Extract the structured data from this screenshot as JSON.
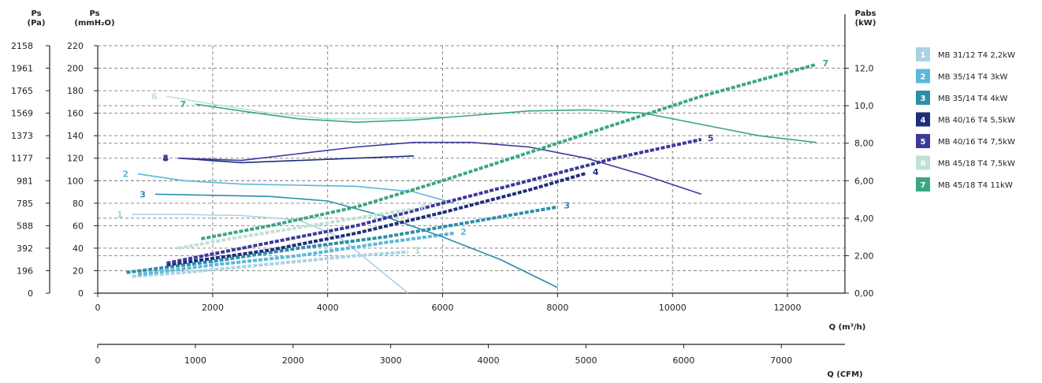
{
  "chart_data": {
    "type": "line",
    "axes": {
      "left_outer": {
        "label_line1": "Ps",
        "label_line2": "(Pa)",
        "ticks": [
          "2158",
          "1961",
          "1765",
          "1569",
          "1373",
          "1177",
          "981",
          "785",
          "588",
          "392",
          "196",
          "0"
        ]
      },
      "left_inner": {
        "label_line1": "Ps",
        "label_line2": "(mmH₂O)",
        "ticks": [
          "220",
          "200",
          "180",
          "160",
          "140",
          "120",
          "100",
          "80",
          "60",
          "40",
          "20",
          "0"
        ],
        "ylim": [
          0,
          220
        ]
      },
      "right": {
        "label_line1": "Pabs",
        "label_line2": "(kW)",
        "ticks": [
          "12,0",
          "10,0",
          "8,00",
          "6,00",
          "4,00",
          "2,00",
          "0,00"
        ],
        "ylim": [
          0,
          13.2
        ]
      },
      "x_m3h": {
        "label": "Q (m³/h)",
        "ticks": [
          "0",
          "2000",
          "4000",
          "6000",
          "8000",
          "10000",
          "12000"
        ],
        "xlim": [
          0,
          13000
        ]
      },
      "x_cfm": {
        "label": "Q (CFM)",
        "ticks": [
          "0",
          "1000",
          "2000",
          "3000",
          "4000",
          "5000",
          "6000",
          "7000"
        ],
        "xlim": [
          0,
          7651
        ]
      }
    },
    "series": [
      {
        "id": "1",
        "name": "MB 31/12 T4 2,2kW",
        "color": "#a9d3e4",
        "pressure": [
          [
            600,
            70
          ],
          [
            1500,
            70
          ],
          [
            2500,
            69
          ],
          [
            3500,
            65
          ],
          [
            4200,
            50
          ],
          [
            4800,
            25
          ],
          [
            5400,
            0
          ]
        ],
        "power": [
          [
            600,
            0.9
          ],
          [
            1500,
            1.1
          ],
          [
            2500,
            1.4
          ],
          [
            3500,
            1.7
          ],
          [
            4500,
            2.0
          ],
          [
            5400,
            2.2
          ]
        ]
      },
      {
        "id": "2",
        "name": "MB 35/14 T4 3kW",
        "color": "#5bb8dc",
        "pressure": [
          [
            700,
            106
          ],
          [
            1500,
            100
          ],
          [
            2500,
            97
          ],
          [
            3500,
            96
          ],
          [
            4500,
            95
          ],
          [
            5500,
            90
          ],
          [
            6200,
            80
          ]
        ],
        "power": [
          [
            700,
            1.0
          ],
          [
            2000,
            1.5
          ],
          [
            3500,
            2.0
          ],
          [
            5000,
            2.7
          ],
          [
            6200,
            3.2
          ]
        ]
      },
      {
        "id": "3",
        "name": "MB 35/14 T4 4kW",
        "color": "#2b8eaa",
        "pressure": [
          [
            1000,
            88
          ],
          [
            2000,
            87
          ],
          [
            3000,
            86
          ],
          [
            4000,
            82
          ],
          [
            5000,
            68
          ],
          [
            6000,
            50
          ],
          [
            7000,
            30
          ],
          [
            8000,
            5
          ]
        ],
        "power": [
          [
            500,
            1.1
          ],
          [
            2000,
            1.7
          ],
          [
            3500,
            2.4
          ],
          [
            5000,
            3.0
          ],
          [
            6500,
            3.8
          ],
          [
            8000,
            4.6
          ]
        ]
      },
      {
        "id": "4",
        "name": "MB 40/16 T4 5,5kW",
        "color": "#1d2e7a",
        "pressure": [
          [
            1400,
            120
          ],
          [
            2500,
            116
          ],
          [
            3500,
            118
          ],
          [
            4500,
            120
          ],
          [
            5500,
            122
          ]
        ],
        "power": [
          [
            1200,
            1.5
          ],
          [
            3000,
            2.3
          ],
          [
            4500,
            3.2
          ],
          [
            6000,
            4.3
          ],
          [
            7500,
            5.5
          ],
          [
            8500,
            6.4
          ]
        ]
      },
      {
        "id": "5",
        "name": "MB 40/16 T4 7,5kW",
        "color": "#3a3a9a",
        "pressure": [
          [
            1400,
            120
          ],
          [
            2500,
            118
          ],
          [
            3500,
            124
          ],
          [
            4500,
            130
          ],
          [
            5500,
            134
          ],
          [
            6500,
            134
          ],
          [
            7500,
            130
          ],
          [
            8500,
            120
          ],
          [
            9500,
            105
          ],
          [
            10500,
            88
          ]
        ],
        "power": [
          [
            1200,
            1.6
          ],
          [
            3000,
            2.7
          ],
          [
            4500,
            3.6
          ],
          [
            6000,
            4.8
          ],
          [
            7500,
            6.0
          ],
          [
            9000,
            7.2
          ],
          [
            10500,
            8.2
          ]
        ]
      },
      {
        "id": "6",
        "name": "MB 45/18 T4 7,5kW",
        "color": "#bfe2d6",
        "pressure": [
          [
            1200,
            175
          ],
          [
            2000,
            168
          ],
          [
            3000,
            160
          ],
          [
            4000,
            155
          ],
          [
            5000,
            155
          ],
          [
            6000,
            157
          ]
        ],
        "power": [
          [
            1400,
            2.4
          ],
          [
            2500,
            3.0
          ],
          [
            3500,
            3.5
          ],
          [
            4500,
            4.0
          ],
          [
            5500,
            4.5
          ]
        ]
      },
      {
        "id": "7",
        "name": "MB 45/18 T4 11kW",
        "color": "#3aa684",
        "pressure": [
          [
            1700,
            168
          ],
          [
            2500,
            162
          ],
          [
            3500,
            155
          ],
          [
            4500,
            152
          ],
          [
            5500,
            154
          ],
          [
            6500,
            158
          ],
          [
            7500,
            162
          ],
          [
            8500,
            163
          ],
          [
            9500,
            160
          ],
          [
            10500,
            150
          ],
          [
            11500,
            140
          ],
          [
            12500,
            134
          ]
        ],
        "power": [
          [
            1800,
            2.9
          ],
          [
            3000,
            3.6
          ],
          [
            4500,
            4.6
          ],
          [
            6000,
            6.0
          ],
          [
            7500,
            7.5
          ],
          [
            9000,
            9.0
          ],
          [
            10500,
            10.5
          ],
          [
            12500,
            12.2
          ]
        ]
      }
    ]
  }
}
